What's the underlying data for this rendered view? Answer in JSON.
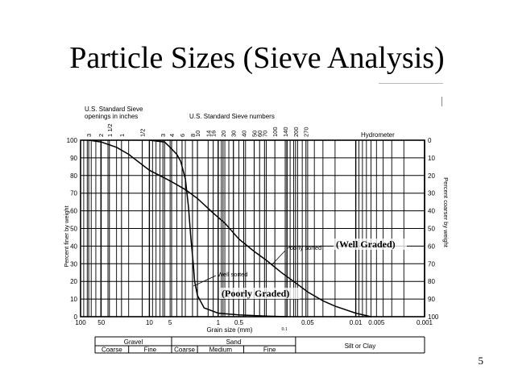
{
  "slide": {
    "title": "Particle Sizes (Sieve Analysis)",
    "page_number": "5"
  },
  "chart_data": {
    "type": "line",
    "x_scale": "log",
    "x_reversed": true,
    "xlabel": "Grain size (mm)",
    "xlim": [
      100,
      0.001
    ],
    "x_ticks": [
      {
        "value": 100,
        "label": "100"
      },
      {
        "value": 50,
        "label": "50"
      },
      {
        "value": 10,
        "label": "10"
      },
      {
        "value": 5,
        "label": "5"
      },
      {
        "value": 1,
        "label": "1"
      },
      {
        "value": 0.5,
        "label": "0.5"
      },
      {
        "value": 0.05,
        "label": "0.05"
      },
      {
        "value": 0.01,
        "label": "0.01"
      },
      {
        "value": 0.005,
        "label": "0.005"
      },
      {
        "value": 0.001,
        "label": "0.001"
      }
    ],
    "x_annotation": {
      "value": 0.1,
      "label": "0.1"
    },
    "ylabel_left": "Percent finer by weight",
    "ylabel_right": "Percent coarser by weight",
    "ylim": [
      0,
      100
    ],
    "y_ticks_left": [
      "0",
      "10",
      "20",
      "30",
      "40",
      "50",
      "60",
      "70",
      "80",
      "90",
      "100"
    ],
    "y_ticks_right": [
      "100",
      "90",
      "80",
      "70",
      "60",
      "50",
      "40",
      "30",
      "20",
      "10",
      "0"
    ],
    "grid": true,
    "sieve_inch_header": "U.S. Standard Sieve openings in inches",
    "sieve_inch_labels": [
      {
        "size": 76.2,
        "label": "3"
      },
      {
        "size": 50.8,
        "label": "2"
      },
      {
        "size": 38.1,
        "label": "1 1/2"
      },
      {
        "size": 25.4,
        "label": "1"
      },
      {
        "size": 12.7,
        "label": "1/2"
      }
    ],
    "sieve_number_header": "U.S. Standard Sieve numbers",
    "sieve_number_labels": [
      {
        "size": 6.35,
        "label": "3"
      },
      {
        "size": 4.75,
        "label": "4"
      },
      {
        "size": 3.35,
        "label": "6"
      },
      {
        "size": 2.36,
        "label": "8"
      },
      {
        "size": 2.0,
        "label": "10"
      },
      {
        "size": 1.4,
        "label": "14"
      },
      {
        "size": 1.18,
        "label": "16"
      },
      {
        "size": 0.85,
        "label": "20"
      },
      {
        "size": 0.6,
        "label": "30"
      },
      {
        "size": 0.425,
        "label": "40"
      },
      {
        "size": 0.3,
        "label": "50"
      },
      {
        "size": 0.25,
        "label": "60"
      },
      {
        "size": 0.212,
        "label": "70"
      },
      {
        "size": 0.15,
        "label": "100"
      },
      {
        "size": 0.106,
        "label": "140"
      },
      {
        "size": 0.075,
        "label": "200"
      },
      {
        "size": 0.053,
        "label": "270"
      }
    ],
    "hydrometer_label": "Hydrometer",
    "series": [
      {
        "label": "Poorly sorted",
        "x": [
          75,
          50,
          30,
          20,
          10,
          5,
          3,
          2,
          1.2,
          0.8,
          0.5,
          0.3,
          0.2,
          0.12,
          0.08,
          0.05,
          0.03,
          0.02,
          0.01,
          0.006
        ],
        "y": [
          100,
          99,
          96,
          92,
          83,
          77,
          72,
          67,
          59,
          53,
          44,
          37,
          32,
          25,
          20,
          14,
          9,
          6,
          2,
          0
        ]
      },
      {
        "label": "Well sorted",
        "x": [
          10,
          6,
          5,
          4,
          3.5,
          3.0,
          2.7,
          2.5,
          2.3,
          2.2,
          2.0,
          1.6,
          1.0,
          0.5,
          0.2,
          0.1
        ],
        "y": [
          100,
          99,
          96,
          92,
          88,
          78,
          62,
          45,
          30,
          20,
          12,
          5,
          2,
          1,
          0.3,
          0
        ]
      }
    ],
    "annotations": [
      "(Well Graded)",
      "(Poorly Graded)"
    ],
    "classification": {
      "gravel": "Gravel",
      "sand": "Sand",
      "gravel_coarse": "Coarse",
      "gravel_fine": "Fine",
      "sand_coarse": "Coarse",
      "sand_medium": "Medium",
      "sand_fine": "Fine",
      "silt_clay": "Silt or Clay"
    }
  }
}
